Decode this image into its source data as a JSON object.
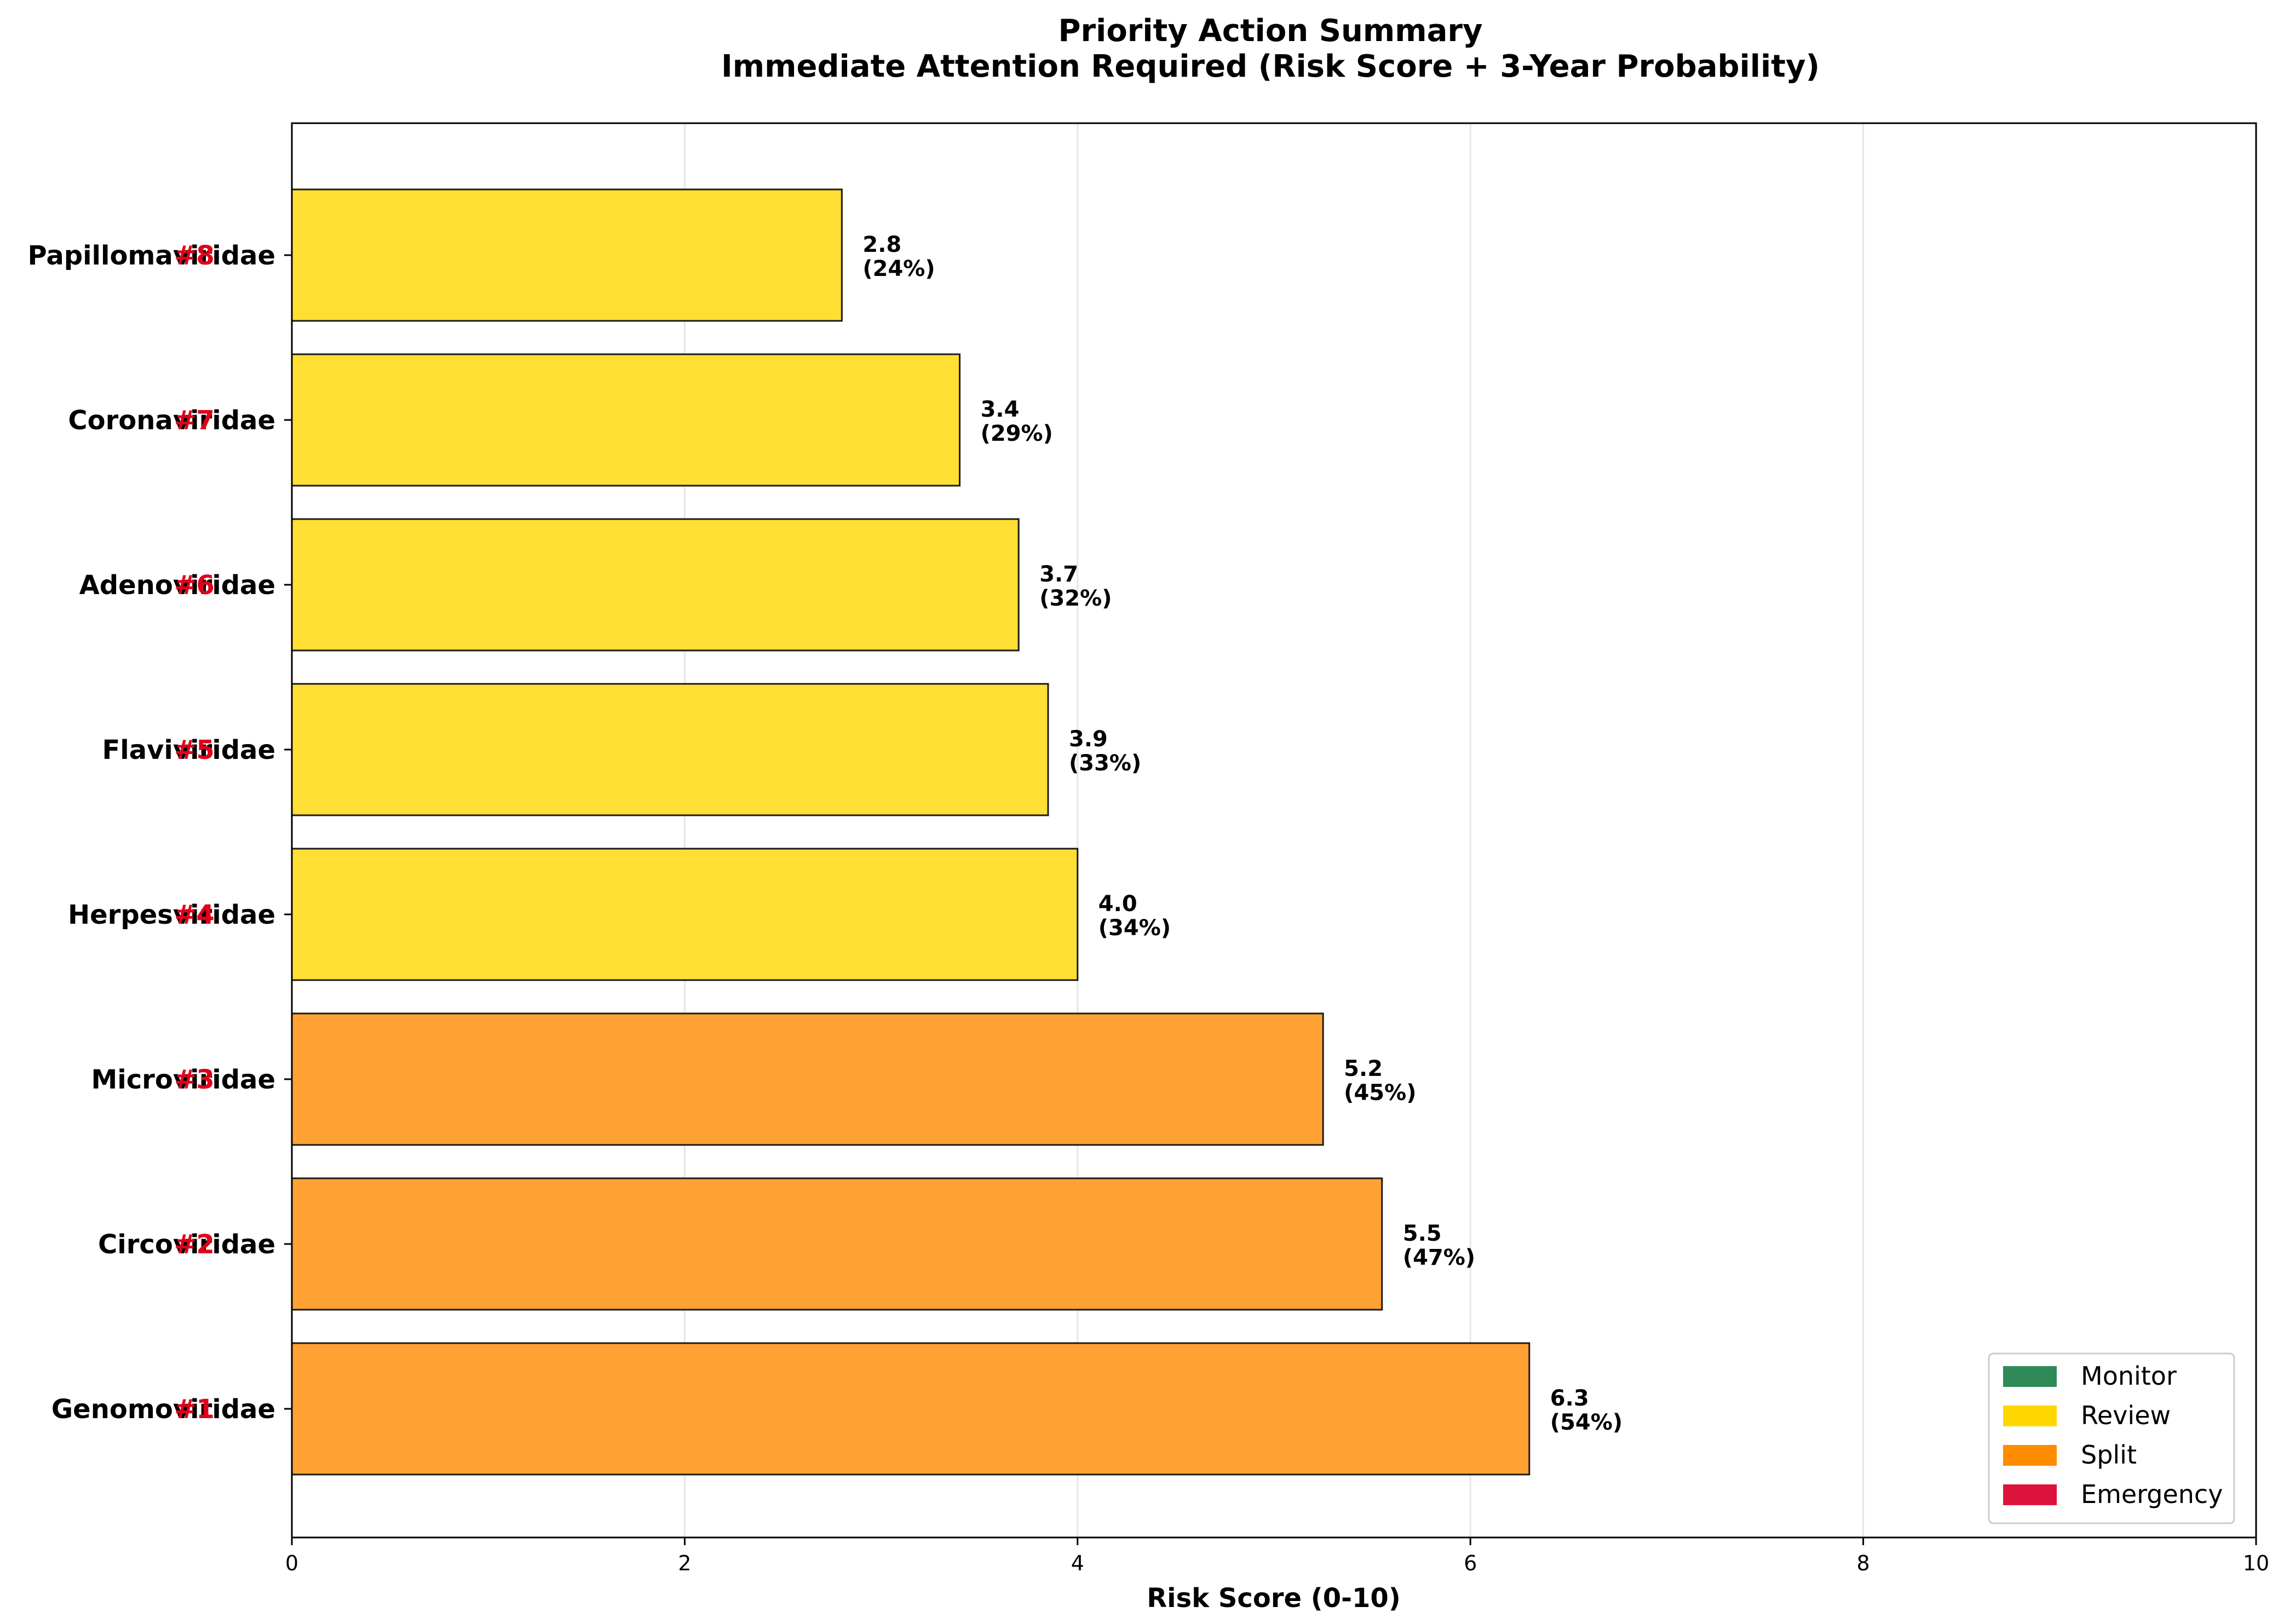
{
  "chart_data": {
    "type": "bar",
    "orientation": "horizontal",
    "title": "Priority Action Summary",
    "subtitle": "Immediate Attention Required (Risk Score + 3-Year Probability)",
    "xlabel": "Risk Score (0-10)",
    "xlim": [
      0,
      10
    ],
    "xticks": [
      "0",
      "2",
      "4",
      "6",
      "8",
      "10"
    ],
    "grid": "x",
    "categories": [
      "Genomoviridae",
      "Circoviridae",
      "Microviridae",
      "Herpesviridae",
      "Flaviviridae",
      "Adenoviridae",
      "Coronaviridae",
      "Papillomaviridae"
    ],
    "ranks": [
      "#1",
      "#2",
      "#3",
      "#4",
      "#5",
      "#6",
      "#7",
      "#8"
    ],
    "values": [
      6.3,
      5.55,
      5.25,
      4.0,
      3.85,
      3.7,
      3.4,
      2.8
    ],
    "value_labels": [
      "6.3",
      "5.5",
      "5.2",
      "4.0",
      "3.9",
      "3.7",
      "3.4",
      "2.8"
    ],
    "probability_labels": [
      "(54%)",
      "(47%)",
      "(45%)",
      "(34%)",
      "(33%)",
      "(32%)",
      "(29%)",
      "(24%)"
    ],
    "actions": [
      "Split",
      "Split",
      "Split",
      "Review",
      "Review",
      "Review",
      "Review",
      "Review"
    ],
    "legend": {
      "position": "lower-right",
      "entries": [
        {
          "name": "Monitor",
          "color": "#2e8b57"
        },
        {
          "name": "Review",
          "color": "#ffd700"
        },
        {
          "name": "Split",
          "color": "#ff8c00"
        },
        {
          "name": "Emergency",
          "color": "#dc143c"
        }
      ]
    },
    "bar_colors": {
      "Split": "#ffa233",
      "Review": "#ffdf33"
    },
    "rank_color": "#e0001a"
  }
}
